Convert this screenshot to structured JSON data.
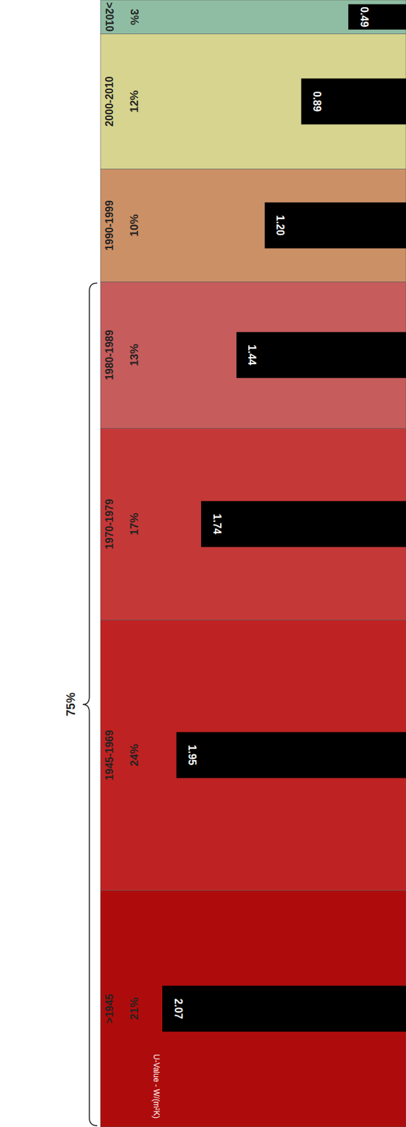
{
  "chart_data": {
    "type": "bar",
    "orientation": "horizontal",
    "categories": [
      ">1945",
      "1945-1969",
      "1970-1979",
      "1980-1989",
      "1990-1999",
      "2000-2010",
      ">2010"
    ],
    "values": [
      2.07,
      1.95,
      1.74,
      1.44,
      1.2,
      0.89,
      0.49
    ],
    "value_labels": [
      "2.07",
      "1.95",
      "1.74",
      "1.44",
      "1.20",
      "0.89",
      "0.49"
    ],
    "data_labels": true,
    "shares": [
      21,
      24,
      17,
      13,
      10,
      12,
      3
    ],
    "share_labels": [
      "21%",
      "24%",
      "17%",
      "13%",
      "10%",
      "12%",
      "3%"
    ],
    "colors": [
      "#ae0c0c",
      "#bf2222",
      "#c53838",
      "#c65c5c",
      "#cc9066",
      "#d6d48e",
      "#8fbda3"
    ],
    "color": "#000000",
    "y_label": "U-Value - W/(m²K)",
    "annotation": {
      "text": "75%",
      "categories": [
        ">1945",
        "1980-1989"
      ]
    },
    "tick_labels": false
  }
}
